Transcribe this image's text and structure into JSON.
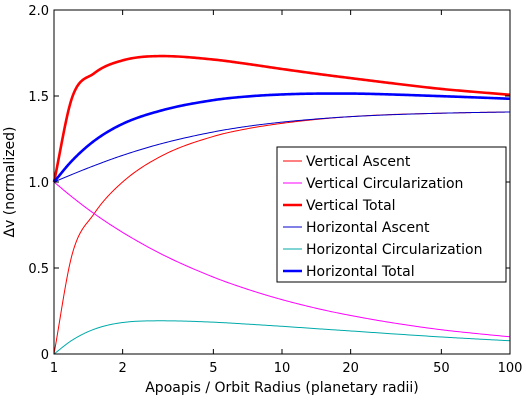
{
  "chart_data": {
    "type": "line",
    "title": "",
    "xlabel": "Apoapis / Orbit Radius (planetary radii)",
    "ylabel": "Δv (normalized)",
    "xscale": "log",
    "xlim": [
      1,
      100
    ],
    "ylim": [
      0,
      2
    ],
    "xticks": [
      1,
      2,
      5,
      10,
      20,
      50,
      100
    ],
    "xtick_labels": [
      "1",
      "2",
      "5",
      "10",
      "20",
      "50",
      "100"
    ],
    "yticks": [
      0,
      0.5,
      1,
      1.5,
      2
    ],
    "ytick_labels": [
      "0",
      "0.5",
      "1.0",
      "1.5",
      "2.0"
    ],
    "grid": false,
    "legend_position": "right",
    "x": [
      1,
      1.2,
      1.5,
      2,
      3,
      5,
      7,
      10,
      15,
      20,
      30,
      50,
      70,
      100
    ],
    "series": [
      {
        "name": "Vertical Ascent",
        "color": "#ff0000",
        "width": "thin",
        "values": [
          0,
          0.577,
          0.816,
          1.0,
          1.155,
          1.265,
          1.309,
          1.341,
          1.367,
          1.38,
          1.392,
          1.4,
          1.404,
          1.407
        ]
      },
      {
        "name": "Vertical Circularization",
        "color": "#ff00ff",
        "width": "thin",
        "values": [
          1.0,
          0.913,
          0.816,
          0.707,
          0.577,
          0.447,
          0.378,
          0.316,
          0.258,
          0.224,
          0.183,
          0.141,
          0.12,
          0.1
        ]
      },
      {
        "name": "Vertical Total",
        "color": "#ff0000",
        "width": "thick",
        "values": [
          1.0,
          1.49,
          1.632,
          1.707,
          1.732,
          1.712,
          1.687,
          1.657,
          1.625,
          1.604,
          1.575,
          1.541,
          1.524,
          1.507
        ]
      },
      {
        "name": "Horizontal Ascent",
        "color": "#0000cc",
        "width": "thin",
        "values": [
          1.0,
          1.044,
          1.095,
          1.155,
          1.225,
          1.291,
          1.323,
          1.348,
          1.369,
          1.38,
          1.391,
          1.4,
          1.404,
          1.407
        ]
      },
      {
        "name": "Horizontal Circularization",
        "color": "#00aaaa",
        "width": "thin",
        "values": [
          0,
          0.08,
          0.144,
          0.183,
          0.193,
          0.185,
          0.174,
          0.161,
          0.145,
          0.134,
          0.118,
          0.099,
          0.088,
          0.077
        ]
      },
      {
        "name": "Horizontal Total",
        "color": "#0000ff",
        "width": "thick",
        "values": [
          1.0,
          1.124,
          1.239,
          1.338,
          1.418,
          1.476,
          1.497,
          1.509,
          1.514,
          1.514,
          1.509,
          1.499,
          1.492,
          1.484
        ]
      }
    ]
  }
}
